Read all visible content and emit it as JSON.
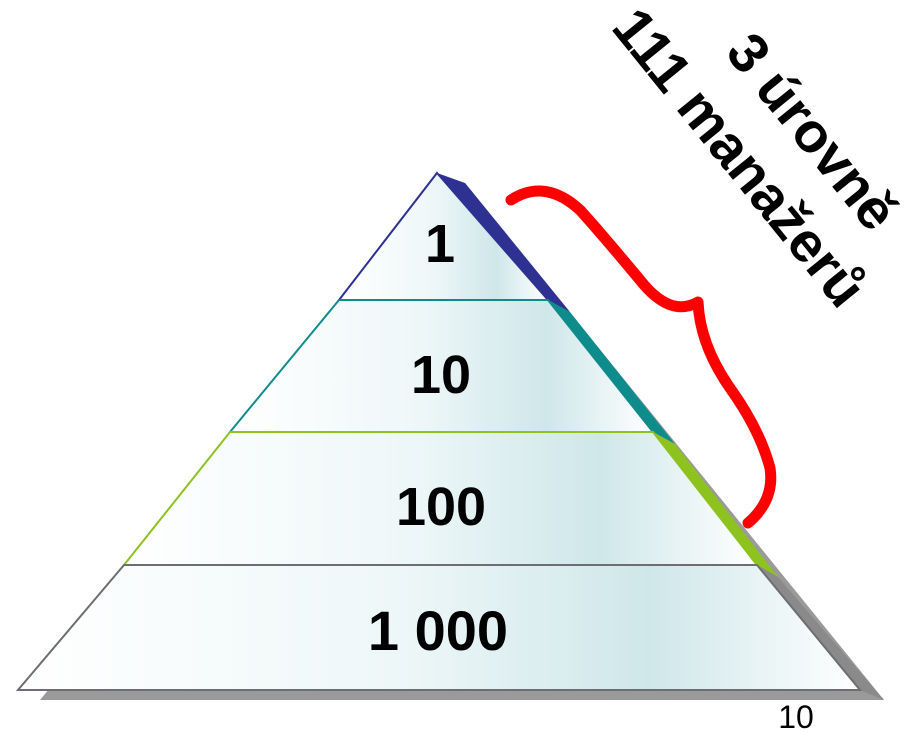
{
  "pyramid": {
    "tiers": [
      {
        "label": "1",
        "edge_color": "#2e3192",
        "side_color": "#2e3192"
      },
      {
        "label": "10",
        "edge_color": "#0e8c8c",
        "side_color": "#0e8c8c"
      },
      {
        "label": "100",
        "edge_color": "#8dc21f",
        "side_color": "#8dc21f"
      },
      {
        "label": "1 000",
        "edge_color": "#6d6e71",
        "side_color": "#8a8a8a"
      }
    ],
    "fill_color": "#eef7f8",
    "fill_shade": "#cfe7ea"
  },
  "annotation": {
    "line1": "3 úrovně",
    "line2": "111 manažerů",
    "bracket_color": "#ff0000"
  },
  "page_number": "10"
}
